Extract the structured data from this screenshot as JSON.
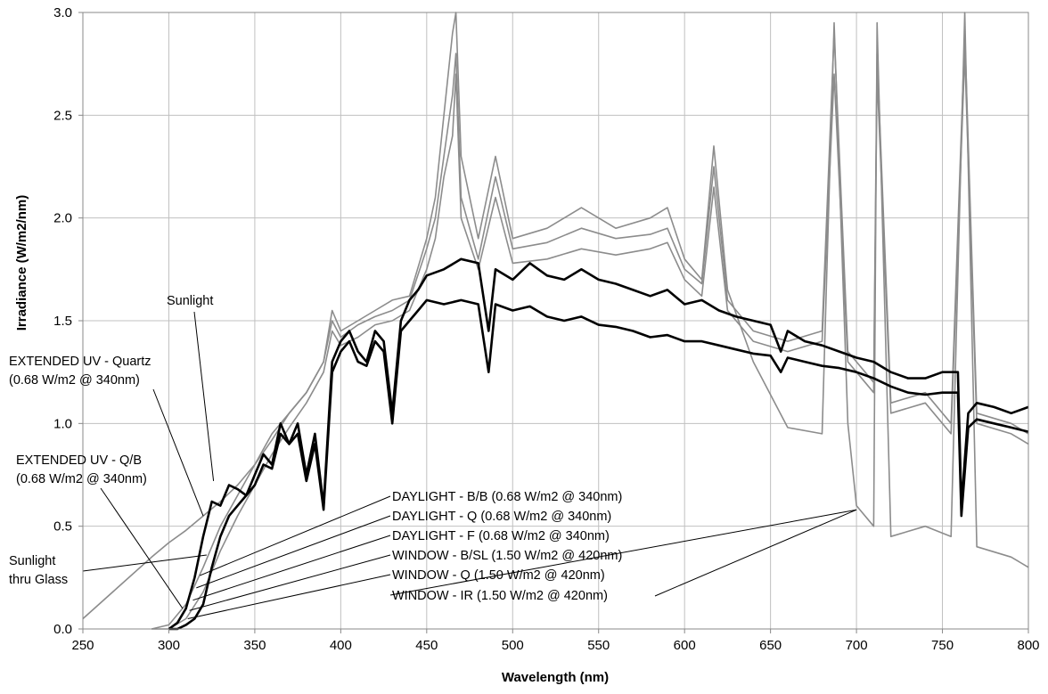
{
  "chart_data": {
    "type": "line",
    "title": "",
    "xlabel": "Wavelength (nm)",
    "ylabel": "Irradiance (W/m2/nm)",
    "xlim": [
      250,
      800
    ],
    "ylim": [
      0,
      3.0
    ],
    "x_ticks": [
      "250",
      "300",
      "350",
      "400",
      "450",
      "500",
      "550",
      "600",
      "650",
      "700",
      "750",
      "800"
    ],
    "y_ticks": [
      "0.0",
      "0.5",
      "1.0",
      "1.5",
      "2.0",
      "2.5",
      "3.0"
    ],
    "grid": true,
    "colors": {
      "sun": "#000000",
      "lamp": "#8c8c8c",
      "gridline": "#c0c0c0"
    },
    "annotations": [
      {
        "text": "Sunlight",
        "x": 326,
        "y": 0.72
      },
      {
        "text": "EXTENDED UV - Quartz",
        "x": 320,
        "y": 0.55
      },
      {
        "text": "(0.68 W/m2 @ 340nm)",
        "x": null,
        "y": null
      },
      {
        "text": "EXTENDED UV - Q/B",
        "x": 308,
        "y": 0.1
      },
      {
        "text": "(0.68 W/m2 @ 340nm)",
        "x": null,
        "y": null
      },
      {
        "text": "Sunlight",
        "x": 322,
        "y": 0.36
      },
      {
        "text": "thru Glass",
        "x": null,
        "y": null
      },
      {
        "text": "DAYLIGHT - B/B (0.68 W/m2 @ 340nm)",
        "x": 318,
        "y": 0.26
      },
      {
        "text": "DAYLIGHT - Q (0.68 W/m2 @ 340nm)",
        "x": 316,
        "y": 0.2
      },
      {
        "text": "DAYLIGHT - F (0.68 W/m2 @ 340nm)",
        "x": 314,
        "y": 0.14
      },
      {
        "text": "WINDOW - B/SL (1.50 W/m2 @ 420nm)",
        "x": 312,
        "y": 0.09
      },
      {
        "text": "WINDOW - Q (1.50 W/m2 @ 420nm)",
        "x": 311,
        "y": 0.05
      },
      {
        "text": "WINDOW - IR (1.50 W/m2 @ 420nm)",
        "x": 700,
        "y": 0.58
      }
    ],
    "series": [
      {
        "role": "sun",
        "x": [
          300,
          305,
          310,
          315,
          320,
          325,
          330,
          335,
          340,
          345,
          350,
          355,
          360,
          365,
          370,
          375,
          380,
          385,
          390,
          395,
          400,
          405,
          410,
          415,
          420,
          425,
          430,
          435,
          440,
          445,
          450,
          460,
          470,
          480,
          486,
          490,
          500,
          510,
          520,
          530,
          540,
          550,
          560,
          570,
          580,
          590,
          600,
          610,
          620,
          630,
          640,
          650,
          656,
          660,
          670,
          680,
          690,
          700,
          710,
          720,
          730,
          740,
          750,
          759,
          761,
          765,
          770,
          780,
          790,
          800
        ],
        "y": [
          0.0,
          0.03,
          0.1,
          0.25,
          0.45,
          0.62,
          0.6,
          0.7,
          0.68,
          0.65,
          0.75,
          0.85,
          0.8,
          1.0,
          0.9,
          1.0,
          0.75,
          0.95,
          0.6,
          1.3,
          1.4,
          1.45,
          1.35,
          1.3,
          1.45,
          1.4,
          1.05,
          1.5,
          1.6,
          1.65,
          1.72,
          1.75,
          1.8,
          1.78,
          1.45,
          1.75,
          1.7,
          1.78,
          1.72,
          1.7,
          1.75,
          1.7,
          1.68,
          1.65,
          1.62,
          1.65,
          1.58,
          1.6,
          1.55,
          1.52,
          1.5,
          1.48,
          1.35,
          1.45,
          1.4,
          1.38,
          1.35,
          1.32,
          1.3,
          1.25,
          1.22,
          1.22,
          1.25,
          1.25,
          0.6,
          1.05,
          1.1,
          1.08,
          1.05,
          1.08
        ]
      },
      {
        "role": "sun",
        "x": [
          300,
          305,
          310,
          315,
          320,
          325,
          330,
          335,
          340,
          345,
          350,
          355,
          360,
          365,
          370,
          375,
          380,
          385,
          390,
          395,
          400,
          405,
          410,
          415,
          420,
          425,
          430,
          435,
          440,
          445,
          450,
          460,
          470,
          480,
          486,
          490,
          500,
          510,
          520,
          530,
          540,
          550,
          560,
          570,
          580,
          590,
          600,
          610,
          620,
          630,
          640,
          650,
          656,
          660,
          670,
          680,
          690,
          700,
          710,
          720,
          730,
          740,
          750,
          759,
          761,
          765,
          770,
          780,
          790,
          800
        ],
        "y": [
          0.0,
          0.0,
          0.02,
          0.05,
          0.12,
          0.3,
          0.45,
          0.55,
          0.6,
          0.65,
          0.7,
          0.8,
          0.78,
          0.95,
          0.9,
          0.95,
          0.72,
          0.9,
          0.58,
          1.25,
          1.35,
          1.4,
          1.3,
          1.28,
          1.4,
          1.35,
          1.0,
          1.45,
          1.5,
          1.55,
          1.6,
          1.58,
          1.6,
          1.58,
          1.25,
          1.58,
          1.55,
          1.57,
          1.52,
          1.5,
          1.52,
          1.48,
          1.47,
          1.45,
          1.42,
          1.43,
          1.4,
          1.4,
          1.38,
          1.36,
          1.34,
          1.33,
          1.25,
          1.32,
          1.3,
          1.28,
          1.27,
          1.25,
          1.22,
          1.18,
          1.15,
          1.14,
          1.15,
          1.15,
          0.55,
          0.98,
          1.02,
          1.0,
          0.98,
          0.96
        ]
      },
      {
        "role": "lamp",
        "x": [
          250,
          270,
          290,
          300,
          310,
          320,
          330,
          340,
          350,
          360,
          370,
          380,
          390,
          395,
          400,
          410,
          420,
          430,
          440,
          450,
          455,
          460,
          465,
          467,
          470,
          480,
          490,
          500,
          520,
          540,
          560,
          580,
          590,
          600,
          610,
          617,
          625,
          640,
          660,
          680,
          687,
          695,
          700,
          710,
          712,
          720,
          740,
          755,
          763,
          770,
          790,
          800
        ],
        "y": [
          0.05,
          0.2,
          0.35,
          0.42,
          0.48,
          0.55,
          0.62,
          0.7,
          0.8,
          0.92,
          1.05,
          1.15,
          1.3,
          1.55,
          1.45,
          1.5,
          1.55,
          1.6,
          1.62,
          1.9,
          2.1,
          2.5,
          2.9,
          3.0,
          2.3,
          1.9,
          2.3,
          1.9,
          1.95,
          2.05,
          1.95,
          2.0,
          2.05,
          1.8,
          1.7,
          2.35,
          1.65,
          1.3,
          0.98,
          0.95,
          2.95,
          1.0,
          0.6,
          0.5,
          2.95,
          0.45,
          0.5,
          0.45,
          3.0,
          0.4,
          0.35,
          0.3
        ]
      },
      {
        "role": "lamp",
        "x": [
          290,
          300,
          310,
          320,
          330,
          340,
          350,
          360,
          370,
          380,
          390,
          395,
          400,
          410,
          420,
          430,
          440,
          450,
          455,
          460,
          465,
          467,
          470,
          480,
          490,
          500,
          520,
          540,
          560,
          580,
          590,
          600,
          610,
          617,
          625,
          640,
          660,
          680,
          687,
          695,
          700,
          710,
          712,
          720,
          740,
          755,
          763,
          770,
          790,
          800
        ],
        "y": [
          0.0,
          0.02,
          0.12,
          0.3,
          0.5,
          0.65,
          0.8,
          0.95,
          1.05,
          1.15,
          1.3,
          1.5,
          1.42,
          1.48,
          1.52,
          1.55,
          1.6,
          1.85,
          2.0,
          2.3,
          2.6,
          2.8,
          2.1,
          1.8,
          2.2,
          1.85,
          1.88,
          1.95,
          1.9,
          1.92,
          1.95,
          1.75,
          1.68,
          2.25,
          1.6,
          1.45,
          1.4,
          1.45,
          2.9,
          1.35,
          1.3,
          1.2,
          2.8,
          1.1,
          1.15,
          1.0,
          2.9,
          1.05,
          1.0,
          0.95
        ]
      },
      {
        "role": "lamp",
        "x": [
          290,
          300,
          310,
          320,
          330,
          340,
          350,
          360,
          370,
          380,
          390,
          395,
          400,
          410,
          420,
          430,
          440,
          450,
          455,
          460,
          465,
          467,
          470,
          480,
          490,
          500,
          520,
          540,
          560,
          580,
          590,
          600,
          610,
          617,
          625,
          640,
          660,
          680,
          687,
          695,
          700,
          710,
          712,
          720,
          740,
          755,
          763,
          770,
          790,
          800
        ],
        "y": [
          0.0,
          0.0,
          0.05,
          0.18,
          0.38,
          0.55,
          0.7,
          0.85,
          0.98,
          1.1,
          1.25,
          1.45,
          1.38,
          1.42,
          1.48,
          1.5,
          1.55,
          1.75,
          1.9,
          2.2,
          2.4,
          2.7,
          2.0,
          1.75,
          2.1,
          1.78,
          1.8,
          1.85,
          1.82,
          1.85,
          1.88,
          1.7,
          1.62,
          2.15,
          1.55,
          1.4,
          1.35,
          1.4,
          2.7,
          1.3,
          1.25,
          1.15,
          2.7,
          1.05,
          1.1,
          0.95,
          2.8,
          1.0,
          0.95,
          0.9
        ]
      }
    ]
  }
}
